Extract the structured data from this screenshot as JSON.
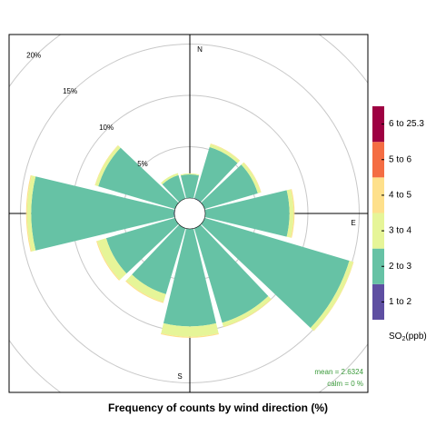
{
  "chart_data": {
    "type": "windrose",
    "title": "Frequency of counts by wind direction (%)",
    "x": [
      0,
      30,
      60,
      90,
      120,
      150,
      180,
      210,
      240,
      270,
      300,
      330
    ],
    "xticks": [
      {
        "value": 0,
        "label": "N"
      },
      {
        "value": 90,
        "label": "E"
      },
      {
        "value": 180,
        "label": "S"
      }
    ],
    "ylim": [
      0,
      20
    ],
    "yticks": [
      {
        "value": 5,
        "label": "5%"
      },
      {
        "value": 10,
        "label": "10%"
      },
      {
        "value": 15,
        "label": "15%"
      },
      {
        "value": 20,
        "label": "20%"
      }
    ],
    "series": [
      {
        "name": "1 to 2",
        "color": "#5e4fa2",
        "values": [
          0,
          0.05,
          0,
          0,
          0,
          0,
          0,
          0,
          0,
          0.05,
          0,
          0
        ]
      },
      {
        "name": "2 to 3",
        "color": "#66c2a5",
        "values": [
          2.3,
          5.2,
          5.4,
          8.2,
          14.7,
          9.6,
          9.5,
          6.7,
          7.0,
          13.9,
          7.8,
          2.4
        ]
      },
      {
        "name": "3 to 4",
        "color": "#e6f598",
        "values": [
          0.1,
          0.3,
          0.3,
          0.4,
          0.4,
          0.4,
          1.0,
          0.8,
          0.9,
          0.4,
          0.3,
          0.2
        ]
      },
      {
        "name": "4 to 5",
        "color": "#fee08b",
        "values": [
          0,
          0.05,
          0.05,
          0.1,
          0.05,
          0.05,
          0.1,
          0.1,
          0.1,
          0.1,
          0.05,
          0
        ]
      },
      {
        "name": "5 to 6",
        "color": "#f46d43",
        "values": [
          0,
          0,
          0,
          0,
          0,
          0,
          0,
          0,
          0,
          0,
          0,
          0
        ]
      },
      {
        "name": "6 to 25.3",
        "color": "#9e0142",
        "values": [
          0,
          0,
          0,
          0,
          0,
          0,
          0,
          0,
          0,
          0,
          0,
          0
        ]
      }
    ],
    "legend_title": [
      "SO",
      "2",
      "(ppb)"
    ],
    "annotations": [
      "mean = 2.6324",
      "calm = 0 %"
    ],
    "annotation_color": "#3a9a3a"
  }
}
